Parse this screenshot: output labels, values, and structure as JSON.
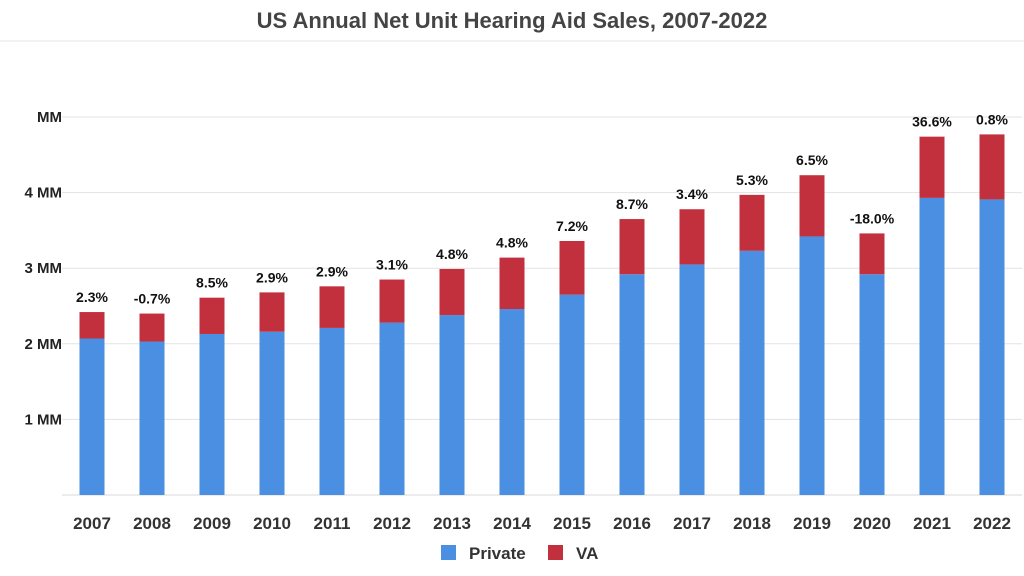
{
  "chart_data": {
    "type": "bar",
    "stacked": true,
    "title": "US Annual Net Unit Hearing Aid Sales, 2007-2022",
    "xlabel": "",
    "ylabel": "",
    "categories": [
      "2007",
      "2008",
      "2009",
      "2010",
      "2011",
      "2012",
      "2013",
      "2014",
      "2015",
      "2016",
      "2017",
      "2018",
      "2019",
      "2020",
      "2021",
      "2022"
    ],
    "series": [
      {
        "name": "Private",
        "color": "#4A8FE2",
        "values": [
          2.07,
          2.03,
          2.13,
          2.16,
          2.21,
          2.28,
          2.38,
          2.46,
          2.65,
          2.92,
          3.05,
          3.23,
          3.42,
          2.92,
          3.93,
          3.91
        ]
      },
      {
        "name": "VA",
        "color": "#C1303C",
        "values": [
          0.35,
          0.37,
          0.48,
          0.52,
          0.55,
          0.57,
          0.61,
          0.68,
          0.71,
          0.73,
          0.73,
          0.74,
          0.81,
          0.54,
          0.81,
          0.86
        ]
      }
    ],
    "growth_labels": [
      "2.3%",
      "-0.7%",
      "8.5%",
      "2.9%",
      "2.9%",
      "3.1%",
      "4.8%",
      "4.8%",
      "7.2%",
      "8.7%",
      "3.4%",
      "5.3%",
      "6.5%",
      "-18.0%",
      "36.6%",
      "0.8%"
    ],
    "yticks": [
      {
        "value": 1,
        "label": "1 MM"
      },
      {
        "value": 2,
        "label": "2 MM"
      },
      {
        "value": 3,
        "label": "3 MM"
      },
      {
        "value": 4,
        "label": "4 MM"
      },
      {
        "value": 5,
        "label": "MM"
      }
    ],
    "ylim": [
      0,
      5
    ],
    "grid": true,
    "legend_position": "bottom-center"
  }
}
